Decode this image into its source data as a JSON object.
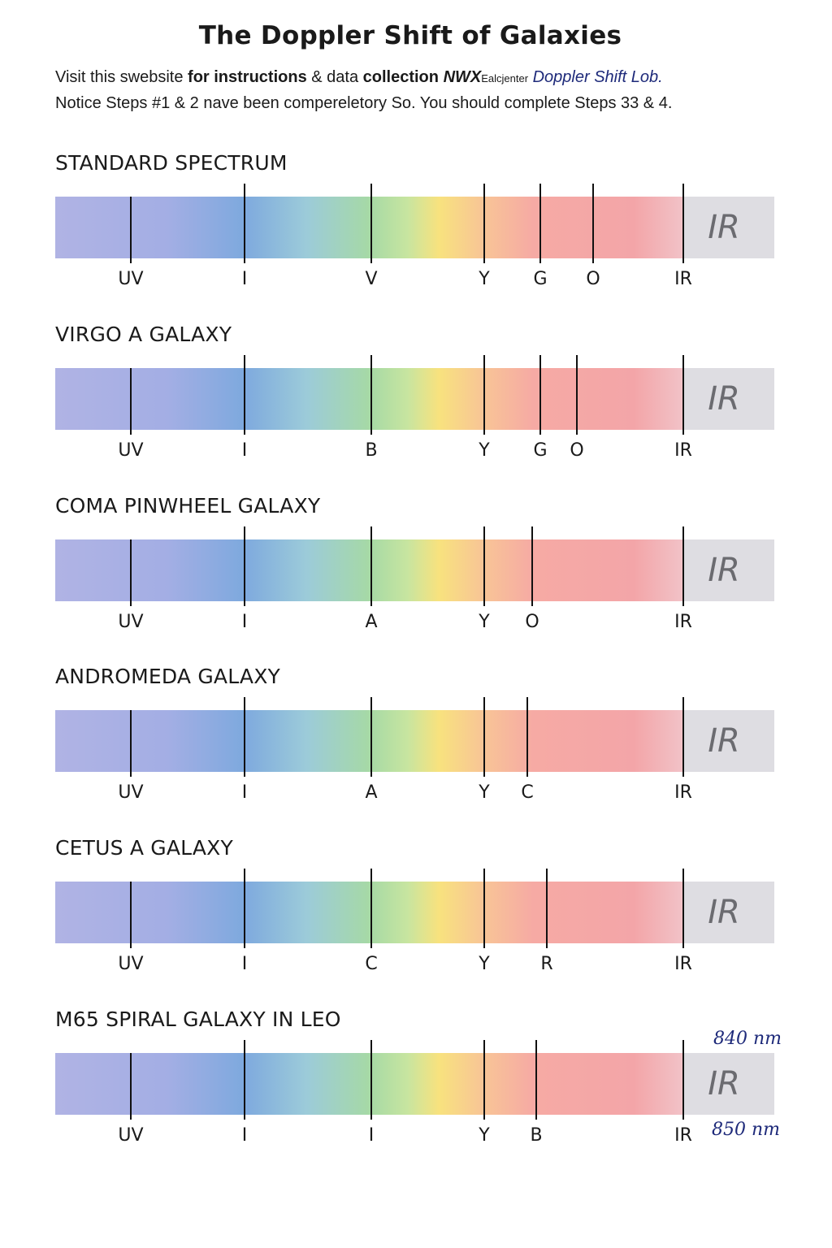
{
  "title": "The Doppler Shift of Galaxies",
  "intro": {
    "l1_a": "Visit this swebsite ",
    "l1_b": "for instructions",
    "l1_c": " & data ",
    "l1_d": "collection",
    "l1_e": " ",
    "l1_f": "NWX",
    "l1_g": "Ealcjenter",
    "l1_h": " Doppler Shift Lob.",
    "line2": "Notice Steps #1 & 2 nave been compereletory So. You should complete Steps 33 & 4."
  },
  "ir_label": "IR",
  "sections": [
    {
      "title": "STANDARD SPECTRUM",
      "labels": [
        "UV",
        "I",
        "V",
        "Y",
        "G",
        "O",
        "IR"
      ]
    },
    {
      "title": "VIRGO A GALAXY",
      "labels": [
        "UV",
        "I",
        "B",
        "Y",
        "G",
        "O",
        "IR"
      ]
    },
    {
      "title": "COMA PINWHEEL GALAXY",
      "labels": [
        "UV",
        "I",
        "A",
        "Y",
        "O",
        "IR"
      ]
    },
    {
      "title": "ANDROMEDA GALAXY",
      "labels": [
        "UV",
        "I",
        "A",
        "Y",
        "C",
        "IR"
      ]
    },
    {
      "title": "CETUS A GALAXY",
      "labels": [
        "UV",
        "I",
        "C",
        "Y",
        "R",
        "IR"
      ]
    },
    {
      "title": "M65 SPIRAL GALAXY IN LEO",
      "labels": [
        "UV",
        "I",
        "I",
        "Y",
        "B",
        "IR"
      ]
    }
  ],
  "annotations": {
    "top": "840 nm",
    "bottom": "850 nm"
  }
}
